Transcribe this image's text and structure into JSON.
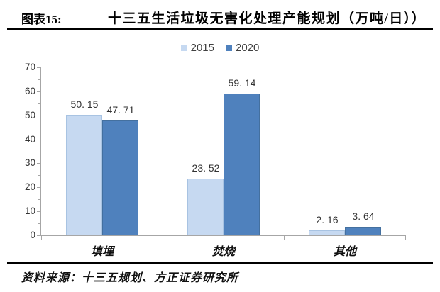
{
  "header": {
    "figure_label": "图表15:"
  },
  "source": {
    "text": "资料来源：十三五规划、方正证券研究所"
  },
  "chart_data": {
    "type": "bar",
    "title": "十三五生活垃圾无害化处理产能规划（万吨/日））",
    "categories": [
      "填埋",
      "焚烧",
      "其他"
    ],
    "series": [
      {
        "name": "2015",
        "color": "#c6d9f1",
        "border_color": "#a8c3e2",
        "values": [
          50.15,
          23.52,
          2.16
        ]
      },
      {
        "name": "2020",
        "color": "#4f81bd",
        "border_color": "#44709f",
        "values": [
          47.71,
          59.14,
          3.64
        ]
      }
    ],
    "value_labels": [
      [
        "50. 15",
        "23. 52",
        "2. 16"
      ],
      [
        "47. 71",
        "59. 14",
        "3. 64"
      ]
    ],
    "ylim": [
      0,
      70
    ],
    "yticks": [
      0,
      10,
      20,
      30,
      40,
      50,
      60,
      70
    ],
    "minor_tick_step": 5,
    "grid": false,
    "legend_position": "top-center",
    "axis_color": "#a6a6a6",
    "text_color": "#333333"
  }
}
